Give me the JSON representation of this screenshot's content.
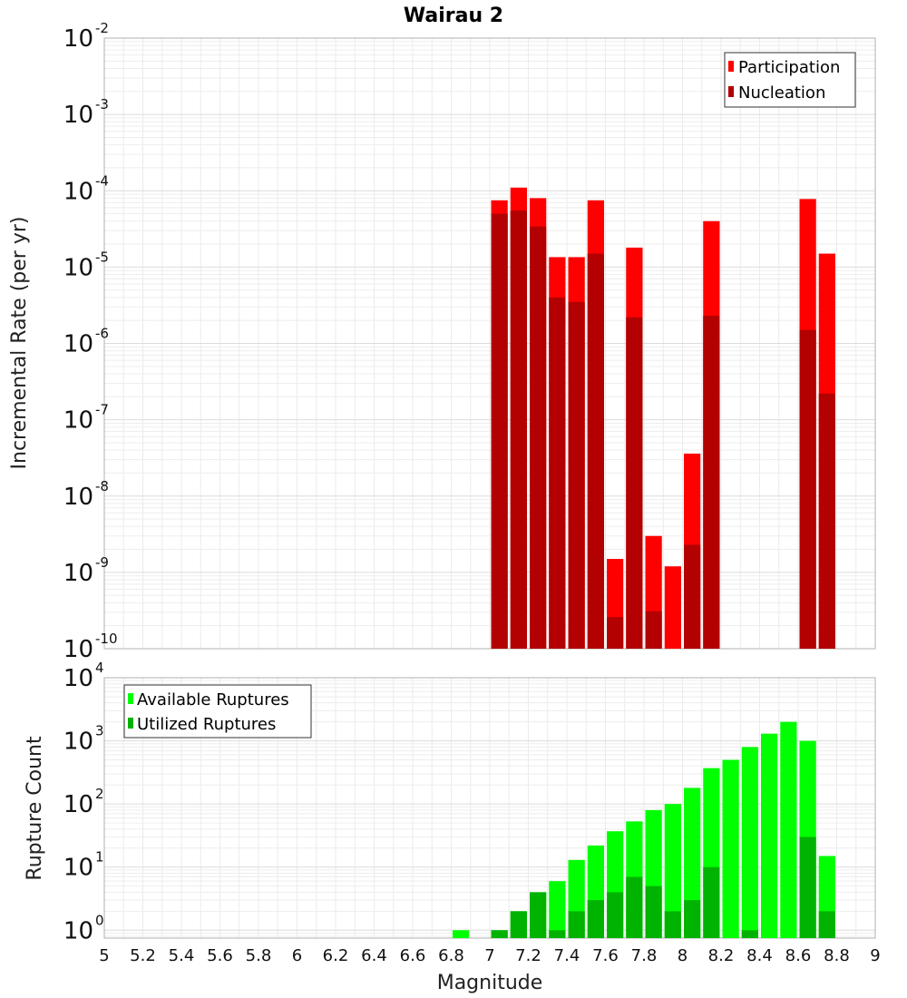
{
  "chart_data": [
    {
      "type": "bar",
      "title": "Wairau 2",
      "xlabel": "Magnitude",
      "ylabel": "Incremental Rate (per yr)",
      "yscale": "log",
      "xlim": [
        5,
        9
      ],
      "ylim": [
        1e-10,
        0.01
      ],
      "yticks": [
        {
          "base": "10",
          "exp": "-10"
        },
        {
          "base": "10",
          "exp": "-9"
        },
        {
          "base": "10",
          "exp": "-8"
        },
        {
          "base": "10",
          "exp": "-7"
        },
        {
          "base": "10",
          "exp": "-6"
        },
        {
          "base": "10",
          "exp": "-5"
        },
        {
          "base": "10",
          "exp": "-4"
        },
        {
          "base": "10",
          "exp": "-3"
        },
        {
          "base": "10",
          "exp": "-2"
        }
      ],
      "legend_position": "top-right",
      "grid": true,
      "x": [
        7.05,
        7.15,
        7.25,
        7.35,
        7.45,
        7.55,
        7.65,
        7.75,
        7.85,
        7.95,
        8.05,
        8.15,
        8.65,
        8.75
      ],
      "series": [
        {
          "name": "Participation",
          "color": "#ff0000",
          "values": [
            7.5e-05,
            0.00011,
            8e-05,
            1.35e-05,
            1.35e-05,
            7.5e-05,
            1.5e-09,
            1.8e-05,
            3e-09,
            1.2e-09,
            3.6e-08,
            4e-05,
            7.8e-05,
            1.5e-05
          ]
        },
        {
          "name": "Nucleation",
          "color": "#b30000",
          "values": [
            5e-05,
            5.5e-05,
            3.4e-05,
            4e-06,
            3.5e-06,
            1.5e-05,
            2.6e-10,
            2.2e-06,
            3.1e-10,
            null,
            2.3e-09,
            2.3e-06,
            1.5e-06,
            2.2e-07
          ]
        }
      ]
    },
    {
      "type": "bar",
      "title": "",
      "xlabel": "Magnitude",
      "ylabel": "Rupture Count",
      "yscale": "log",
      "xlim": [
        5,
        9
      ],
      "ylim": [
        0.75,
        10000.0
      ],
      "yticks": [
        {
          "base": "10",
          "exp": "0",
          "value": 1
        },
        {
          "base": "10",
          "exp": "1",
          "value": 10
        },
        {
          "base": "10",
          "exp": "2",
          "value": 100
        },
        {
          "base": "10",
          "exp": "3",
          "value": 1000
        },
        {
          "base": "10",
          "exp": "4",
          "value": 10000
        }
      ],
      "xticks": [
        "5",
        "5.2",
        "5.4",
        "5.6",
        "5.8",
        "6",
        "6.2",
        "6.4",
        "6.6",
        "6.8",
        "7",
        "7.2",
        "7.4",
        "7.6",
        "7.8",
        "8",
        "8.2",
        "8.4",
        "8.6",
        "8.8",
        "9"
      ],
      "legend_position": "top-left",
      "grid": true,
      "x": [
        6.85,
        7.05,
        7.15,
        7.25,
        7.35,
        7.45,
        7.55,
        7.65,
        7.75,
        7.85,
        7.95,
        8.05,
        8.15,
        8.25,
        8.35,
        8.45,
        8.55,
        8.65,
        8.75
      ],
      "series": [
        {
          "name": "Available Ruptures",
          "color": "#00ff00",
          "values": [
            1,
            1,
            2,
            4,
            6,
            13,
            22,
            37,
            53,
            80,
            100,
            180,
            370,
            500,
            800,
            1300,
            2000,
            1000,
            15
          ]
        },
        {
          "name": "Utilized Ruptures",
          "color": "#00b300",
          "values": [
            null,
            1,
            2,
            4,
            1,
            2,
            3,
            4,
            7,
            5,
            2,
            3,
            10,
            null,
            1,
            null,
            null,
            30,
            2
          ]
        }
      ]
    }
  ]
}
